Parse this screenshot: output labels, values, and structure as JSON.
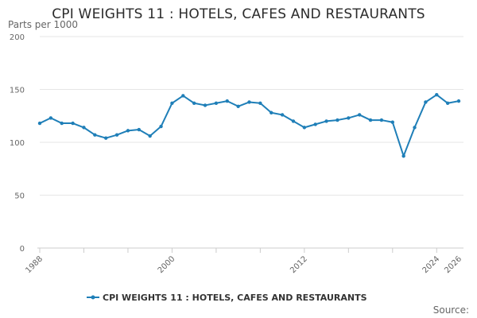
{
  "chart_data": {
    "type": "line",
    "title": "CPI WEIGHTS 11 : HOTELS, CAFES AND RESTAURANTS",
    "ylabel": "Parts per 1000",
    "xlabel": "",
    "ylim": [
      0,
      200
    ],
    "yticks": [
      0,
      50,
      100,
      150,
      200
    ],
    "xlim": [
      1988,
      2026
    ],
    "xticks": [
      1988,
      2000,
      2012,
      2024,
      2026
    ],
    "grid": true,
    "legend_position": "bottom",
    "x": [
      1988,
      1989,
      1990,
      1991,
      1992,
      1993,
      1994,
      1995,
      1996,
      1997,
      1998,
      1999,
      2000,
      2001,
      2002,
      2003,
      2004,
      2005,
      2006,
      2007,
      2008,
      2009,
      2010,
      2011,
      2012,
      2013,
      2014,
      2015,
      2016,
      2017,
      2018,
      2019,
      2020,
      2021,
      2022,
      2023,
      2024,
      2025,
      2026
    ],
    "series": [
      {
        "name": "CPI WEIGHTS 11 : HOTELS, CAFES AND RESTAURANTS",
        "color": "#1f7fb8",
        "values": [
          118,
          123,
          118,
          118,
          114,
          107,
          104,
          107,
          111,
          112,
          106,
          115,
          137,
          144,
          137,
          135,
          137,
          139,
          134,
          138,
          137,
          128,
          126,
          120,
          114,
          117,
          120,
          121,
          123,
          126,
          121,
          121,
          119,
          87,
          114,
          138,
          145,
          137,
          139
        ]
      }
    ]
  },
  "source_label": "Source:"
}
